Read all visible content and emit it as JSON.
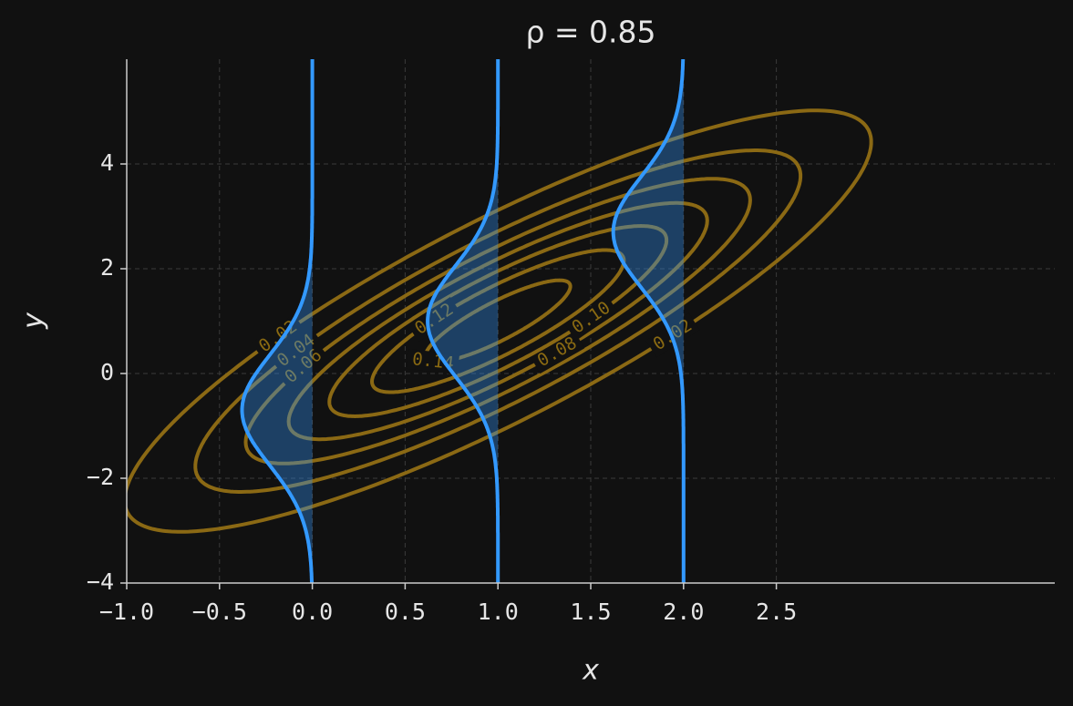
{
  "chart_data": {
    "type": "contour",
    "title": "ρ = 0.85",
    "x_label": "x",
    "y_label": "y",
    "xlim": [
      -1,
      4
    ],
    "ylim": [
      -4,
      6
    ],
    "xticks": [
      {
        "value": -1,
        "label": "−1.0"
      },
      {
        "value": -0.5,
        "label": "−0.5"
      },
      {
        "value": 0,
        "label": "0.0"
      },
      0.5,
      {
        "value": 1,
        "label": "1.0"
      },
      1.5,
      {
        "value": 2,
        "label": "2.0"
      },
      2.5
    ],
    "yticks": [
      {
        "value": -4,
        "label": "−4"
      },
      {
        "value": -2,
        "label": "−2"
      },
      0,
      2,
      4
    ],
    "grid": true,
    "mean": [
      1,
      1
    ],
    "sigma": [
      1,
      2
    ],
    "rho": 0.85,
    "contour_levels": [
      0.02,
      0.04,
      0.06,
      0.08,
      0.1,
      0.12,
      0.14
    ],
    "contour_level_labels": [
      "0.02",
      "0.04",
      "0.06",
      "0.08",
      "0.10",
      "0.12",
      "0.14"
    ],
    "contour_color": "#8b6914",
    "conditional_x": [
      0,
      1,
      2
    ],
    "conditional_color": "#3399ff"
  }
}
